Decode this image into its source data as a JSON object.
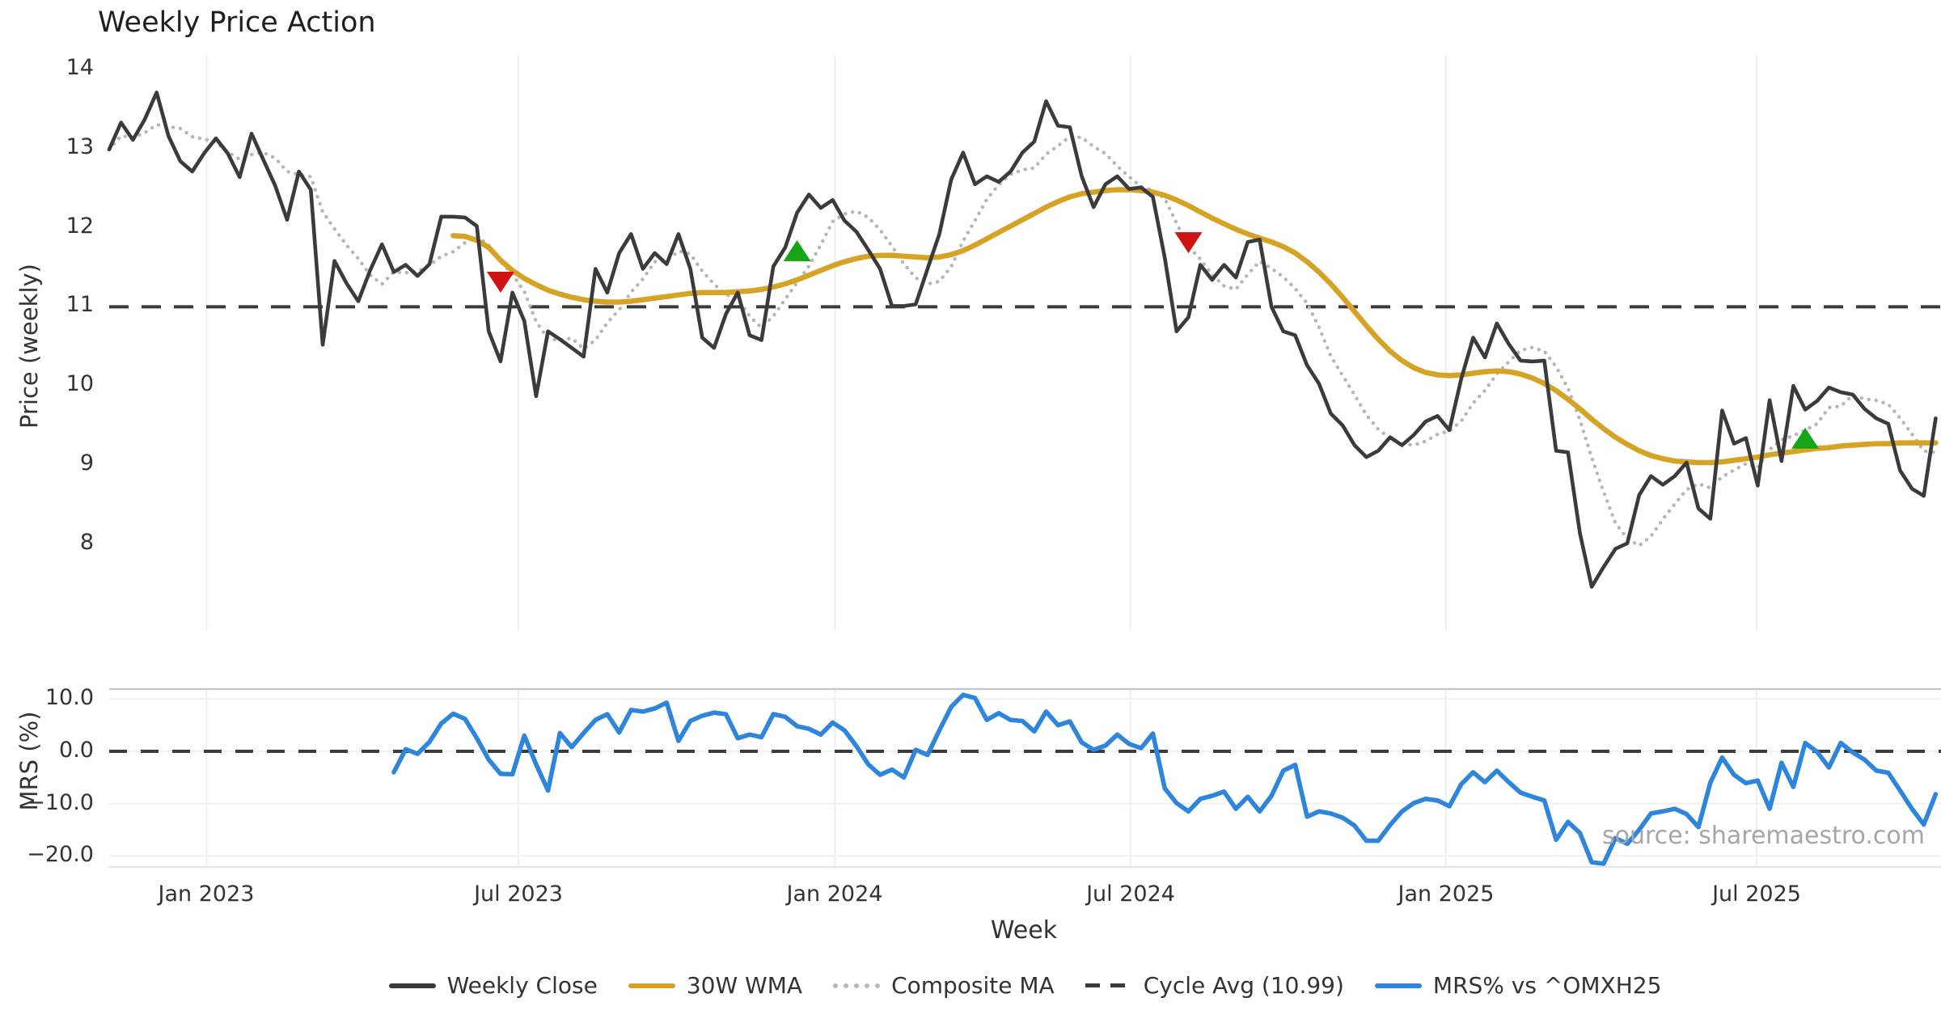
{
  "title": "Weekly Price Action",
  "xlabel": "Week",
  "source_note": "source: sharemaestro.com",
  "top_panel": {
    "ylabel": "Price (weekly)",
    "yticks": [
      {
        "label": "14",
        "value": 14
      },
      {
        "label": "13",
        "value": 13
      },
      {
        "label": "12",
        "value": 12
      },
      {
        "label": "11",
        "value": 11
      },
      {
        "label": "10",
        "value": 10
      },
      {
        "label": "9",
        "value": 9
      },
      {
        "label": "8",
        "value": 8
      }
    ]
  },
  "bottom_panel": {
    "ylabel": "MRS (%)",
    "yticks": [
      {
        "label": "10.0",
        "value": 10
      },
      {
        "label": "0.0",
        "value": 0
      },
      {
        "label": "−10.0",
        "value": -10
      },
      {
        "label": "−20.0",
        "value": -20
      }
    ]
  },
  "x_ticks": [
    {
      "label": "Jan 2023",
      "week": 8.2
    },
    {
      "label": "Jul 2023",
      "week": 34.5
    },
    {
      "label": "Jan 2024",
      "week": 61.2
    },
    {
      "label": "Jul 2024",
      "week": 86.1
    },
    {
      "label": "Jan 2025",
      "week": 112.7
    },
    {
      "label": "Jul 2025",
      "week": 138.9
    }
  ],
  "legend": [
    {
      "id": "weekly-close",
      "label": "Weekly Close",
      "swatch": "solid",
      "color": "#3b3b3b"
    },
    {
      "id": "30w-wma",
      "label": "30W WMA",
      "swatch": "solid",
      "color": "#d6a325"
    },
    {
      "id": "composite-ma",
      "label": "Composite MA",
      "swatch": "dotted",
      "color": "#b6b6b6"
    },
    {
      "id": "cycle-avg",
      "label": "Cycle Avg (10.99)",
      "swatch": "dashed",
      "color": "#3b3b3b"
    },
    {
      "id": "mrs",
      "label": "MRS% vs ^OMXH25",
      "swatch": "solid",
      "color": "#2e85dc"
    }
  ],
  "colors": {
    "weekly_close": "#3b3b3b",
    "wma": "#d6a325",
    "composite": "#b6b6b6",
    "cycle_avg": "#3b3b3b",
    "mrs": "#2e85dc",
    "buy_marker": "#16a516",
    "sell_marker": "#cf1212",
    "grid": "#efefef",
    "grid_soft": "#f1f1f1",
    "spine": "#c8c8c8"
  },
  "chart_data": {
    "type": "line",
    "x_unit": "weekly index (w0 ≈ Nov 2022, one point per week)",
    "weeks_total": 155,
    "panels": [
      {
        "name": "price",
        "ylabel": "Price (weekly)",
        "ylim": [
          6.9,
          14.15
        ],
        "grid": "vertical only"
      },
      {
        "name": "mrs",
        "ylabel": "MRS (%)",
        "ylim": [
          -22.5,
          12.3
        ],
        "grid": "horizontal + vertical"
      }
    ],
    "cycle_avg": 10.99,
    "series": [
      {
        "name": "Weekly Close",
        "panel": "price",
        "start_week": 0,
        "values": [
          12.98,
          13.32,
          13.1,
          13.36,
          13.7,
          13.15,
          12.83,
          12.7,
          12.93,
          13.12,
          12.93,
          12.63,
          13.18,
          12.85,
          12.52,
          12.09,
          12.7,
          12.47,
          10.51,
          11.57,
          11.29,
          11.06,
          11.45,
          11.78,
          11.43,
          11.52,
          11.38,
          11.53,
          12.13,
          12.13,
          12.12,
          12.01,
          10.68,
          10.3,
          11.17,
          10.81,
          9.86,
          10.68,
          10.58,
          10.47,
          10.36,
          11.47,
          11.17,
          11.67,
          11.91,
          11.47,
          11.67,
          11.53,
          11.91,
          11.47,
          10.6,
          10.47,
          10.9,
          11.17,
          10.63,
          10.57,
          11.5,
          11.74,
          12.18,
          12.41,
          12.24,
          12.34,
          12.08,
          11.94,
          11.71,
          11.47,
          11.0,
          11.0,
          11.02,
          11.47,
          11.91,
          12.6,
          12.94,
          12.54,
          12.64,
          12.57,
          12.7,
          12.94,
          13.08,
          13.59,
          13.28,
          13.26,
          12.64,
          12.25,
          12.54,
          12.64,
          12.48,
          12.5,
          12.38,
          11.61,
          10.68,
          10.86,
          11.52,
          11.33,
          11.52,
          11.36,
          11.81,
          11.84,
          10.99,
          10.68,
          10.63,
          10.25,
          10.02,
          9.64,
          9.49,
          9.24,
          9.09,
          9.17,
          9.34,
          9.24,
          9.37,
          9.54,
          9.61,
          9.43,
          10.08,
          10.6,
          10.35,
          10.78,
          10.52,
          10.31,
          10.3,
          10.31,
          9.17,
          9.15,
          8.13,
          7.45,
          7.7,
          7.93,
          8.0,
          8.61,
          8.85,
          8.74,
          8.85,
          9.02,
          8.44,
          8.31,
          9.68,
          9.26,
          9.33,
          8.73,
          9.81,
          9.04,
          9.99,
          9.69,
          9.8,
          9.97,
          9.91,
          9.88,
          9.7,
          9.58,
          9.51,
          8.92,
          8.69,
          8.6,
          9.58
        ]
      },
      {
        "name": "30W WMA",
        "panel": "price",
        "start_week": 29,
        "values": [
          11.89,
          11.88,
          11.83,
          11.74,
          11.58,
          11.45,
          11.35,
          11.27,
          11.2,
          11.15,
          11.11,
          11.08,
          11.06,
          11.05,
          11.05,
          11.06,
          11.08,
          11.1,
          11.12,
          11.14,
          11.16,
          11.17,
          11.17,
          11.17,
          11.18,
          11.19,
          11.21,
          11.24,
          11.28,
          11.33,
          11.39,
          11.45,
          11.51,
          11.56,
          11.6,
          11.63,
          11.64,
          11.64,
          11.63,
          11.62,
          11.61,
          11.62,
          11.65,
          11.7,
          11.77,
          11.85,
          11.93,
          12.01,
          12.09,
          12.17,
          12.25,
          12.32,
          12.38,
          12.42,
          12.44,
          12.46,
          12.47,
          12.47,
          12.46,
          12.44,
          12.4,
          12.34,
          12.27,
          12.19,
          12.11,
          12.04,
          11.97,
          11.91,
          11.86,
          11.81,
          11.75,
          11.67,
          11.56,
          11.43,
          11.28,
          11.11,
          10.93,
          10.75,
          10.58,
          10.43,
          10.31,
          10.22,
          10.16,
          10.13,
          10.12,
          10.13,
          10.15,
          10.17,
          10.18,
          10.17,
          10.14,
          10.09,
          10.02,
          9.93,
          9.82,
          9.7,
          9.57,
          9.45,
          9.34,
          9.25,
          9.17,
          9.11,
          9.07,
          9.04,
          9.03,
          9.02,
          9.02,
          9.03,
          9.05,
          9.07,
          9.09,
          9.12,
          9.14,
          9.16,
          9.18,
          9.2,
          9.21,
          9.23,
          9.24,
          9.25,
          9.26,
          9.26,
          9.27,
          9.27,
          9.27,
          9.27
        ]
      },
      {
        "name": "Composite MA",
        "panel": "price",
        "start_week": 0,
        "derived_from": "Weekly Close",
        "method": "trailing_mean",
        "window": 6
      },
      {
        "name": "Cycle Avg",
        "panel": "price",
        "constant": 10.99,
        "style": "dashed"
      },
      {
        "name": "MRS% vs ^OMXH25",
        "panel": "mrs",
        "start_week": 24,
        "values": [
          -4.0,
          0.4,
          -0.5,
          1.8,
          5.3,
          7.2,
          6.2,
          2.5,
          -1.6,
          -4.3,
          -4.4,
          3.0,
          -2.5,
          -7.5,
          3.5,
          0.8,
          3.5,
          6.0,
          7.1,
          3.6,
          7.9,
          7.6,
          8.2,
          9.3,
          2.0,
          5.8,
          6.8,
          7.4,
          7.1,
          2.5,
          3.2,
          2.7,
          7.1,
          6.6,
          4.8,
          4.3,
          3.2,
          5.5,
          4.0,
          1.0,
          -2.5,
          -4.5,
          -3.5,
          -5.0,
          0.3,
          -0.7,
          4.0,
          8.5,
          10.8,
          10.2,
          6.0,
          7.3,
          6.0,
          5.8,
          3.8,
          7.6,
          5.0,
          5.7,
          1.7,
          0.3,
          1.1,
          3.2,
          1.4,
          0.6,
          3.4,
          -7.1,
          -9.9,
          -11.5,
          -9.1,
          -8.5,
          -7.7,
          -11.0,
          -8.7,
          -11.5,
          -8.5,
          -3.7,
          -2.6,
          -12.5,
          -11.5,
          -11.9,
          -12.7,
          -14.2,
          -17.1,
          -17.1,
          -14.1,
          -11.5,
          -9.9,
          -9.1,
          -9.4,
          -10.5,
          -6.3,
          -4.0,
          -5.9,
          -3.7,
          -5.9,
          -7.9,
          -8.7,
          -9.4,
          -16.9,
          -13.5,
          -15.6,
          -21.2,
          -21.5,
          -16.6,
          -17.7,
          -15.0,
          -11.9,
          -11.5,
          -11.0,
          -12.0,
          -14.5,
          -6.0,
          -1.2,
          -4.5,
          -6.1,
          -5.6,
          -11.0,
          -2.2,
          -6.8,
          1.6,
          -0.1,
          -3.1,
          1.6,
          -0.2,
          -1.6,
          -3.7,
          -4.1,
          -7.5,
          -11.0,
          -14.0,
          -8.2
        ]
      }
    ],
    "markers": {
      "sell": [
        {
          "week": 33,
          "price": 11.3
        },
        {
          "week": 91,
          "price": 11.8
        }
      ],
      "buy": [
        {
          "week": 58,
          "price": 11.7
        },
        {
          "week": 143,
          "price": 9.33
        }
      ]
    },
    "legend_position": "bottom center",
    "annotations": [
      {
        "text": "source: sharemaestro.com",
        "position": "lower right of MRS panel"
      }
    ]
  }
}
